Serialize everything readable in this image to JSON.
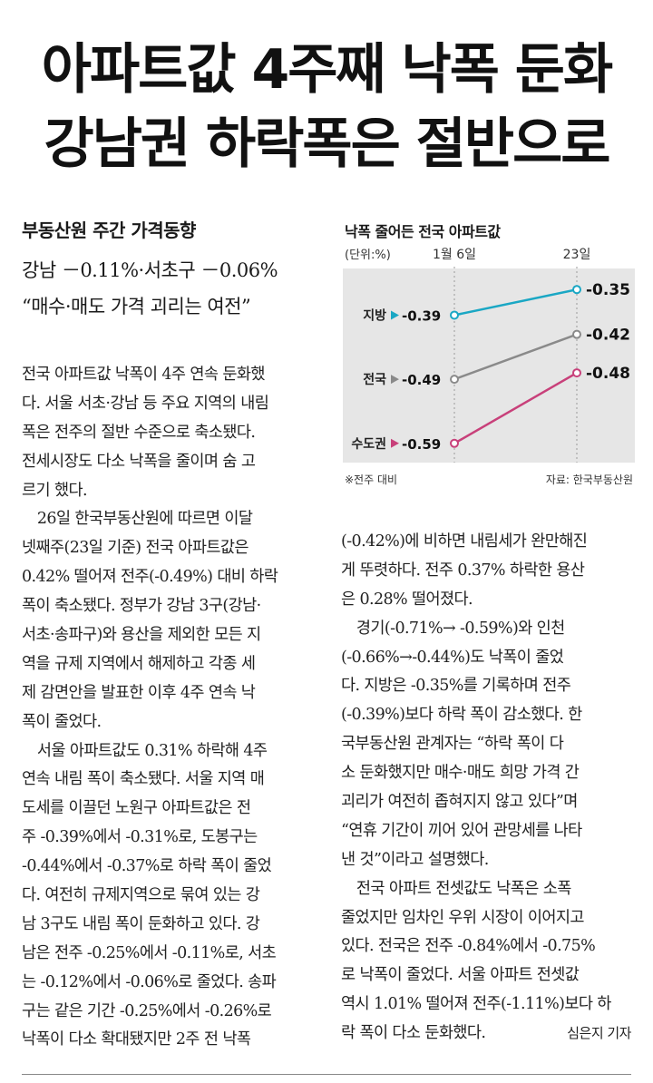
{
  "headline": {
    "line1": "아파트값 4주째 낙폭 둔화",
    "line2": "강남권 하락폭은 절반으로"
  },
  "subhead": "부동산원 주간 가격동향",
  "sublines": [
    "강남 －0.11%·서초구 －0.06%",
    "“매수·매도 가격 괴리는 여전”"
  ],
  "body_left": [
    "전국 아파트값 낙폭이 4주 연속 둔화했",
    "다. 서울 서초·강남 등 주요 지역의 내림",
    "폭은 전주의 절반 수준으로 축소됐다.",
    "전세시장도 다소 낙폭을 줄이며 숨 고",
    "르기 했다.",
    "　26일 한국부동산원에 따르면 이달",
    "넷째주(23일 기준) 전국 아파트값은",
    "0.42% 떨어져 전주(-0.49%) 대비 하락",
    "폭이 축소됐다. 정부가 강남 3구(강남·",
    "서초·송파구)와 용산을 제외한 모든 지",
    "역을 규제 지역에서 해제하고 각종 세",
    "제 감면안을 발표한 이후 4주 연속 낙",
    "폭이 줄었다.",
    "　서울 아파트값도 0.31% 하락해 4주",
    "연속 내림 폭이 축소됐다. 서울 지역 매",
    "도세를 이끌던 노원구 아파트값은 전",
    "주 -0.39%에서 -0.31%로, 도봉구는",
    "-0.44%에서 -0.37%로 하락 폭이 줄었",
    "다. 여전히 규제지역으로 묶여 있는 강",
    "남 3구도 내림 폭이 둔화하고 있다. 강",
    "남은 전주 -0.25%에서 -0.11%로, 서초",
    "는 -0.12%에서 -0.06%로 줄었다. 송파",
    "구는 같은 기간 -0.25%에서 -0.26%로",
    "낙폭이 다소 확대됐지만 2주 전 낙폭"
  ],
  "body_right": [
    "(-0.42%)에 비하면 내림세가 완만해진",
    "게 뚜렷하다. 전주 0.37% 하락한 용산",
    "은 0.28% 떨어졌다.",
    "　경기(-0.71%→ -0.59%)와 인천",
    "(-0.66%→-0.44%)도 낙폭이 줄었",
    "다. 지방은 -0.35%를 기록하며 전주",
    "(-0.39%)보다 하락 폭이 감소했다. 한",
    "국부동산원 관계자는 “하락 폭이 다",
    "소 둔화했지만 매수·매도 희망 가격 간",
    "괴리가 여전히 좁혀지지 않고 있다”며",
    "“연휴 기간이 끼어 있어 관망세를 나타",
    "낸 것”이라고 설명했다.",
    "　전국 아파트 전셋값도 낙폭은 소폭",
    "줄었지만 임차인 우위 시장이 이어지고",
    "있다. 전국은 전주 -0.84%에서 -0.75%",
    "로 낙폭이 줄었다. 서울 아파트 전셋값",
    "역시 1.01% 떨어져 전주(-1.11%)보다 하",
    "락 폭이 다소 둔화했다."
  ],
  "byline": "심은지 기자",
  "chart_data": {
    "type": "line",
    "title": "낙폭 줄어든 전국 아파트값",
    "unit_label": "(단위:%)",
    "x": [
      "1월 6일",
      "23일"
    ],
    "series": [
      {
        "name": "지방",
        "values": [
          -0.39,
          -0.35
        ],
        "color": "#1aa7c4",
        "start_label": "-0.39",
        "end_label": "-0.35"
      },
      {
        "name": "전국",
        "values": [
          -0.49,
          -0.42
        ],
        "color": "#8a8a8a",
        "start_label": "-0.49",
        "end_label": "-0.42"
      },
      {
        "name": "수도권",
        "values": [
          -0.59,
          -0.48
        ],
        "color": "#c8407a",
        "start_label": "-0.59",
        "end_label": "-0.48"
      }
    ],
    "footnote": "※전주 대비",
    "source": "자료: 한국부동산원",
    "background": "#e6e6e6"
  }
}
